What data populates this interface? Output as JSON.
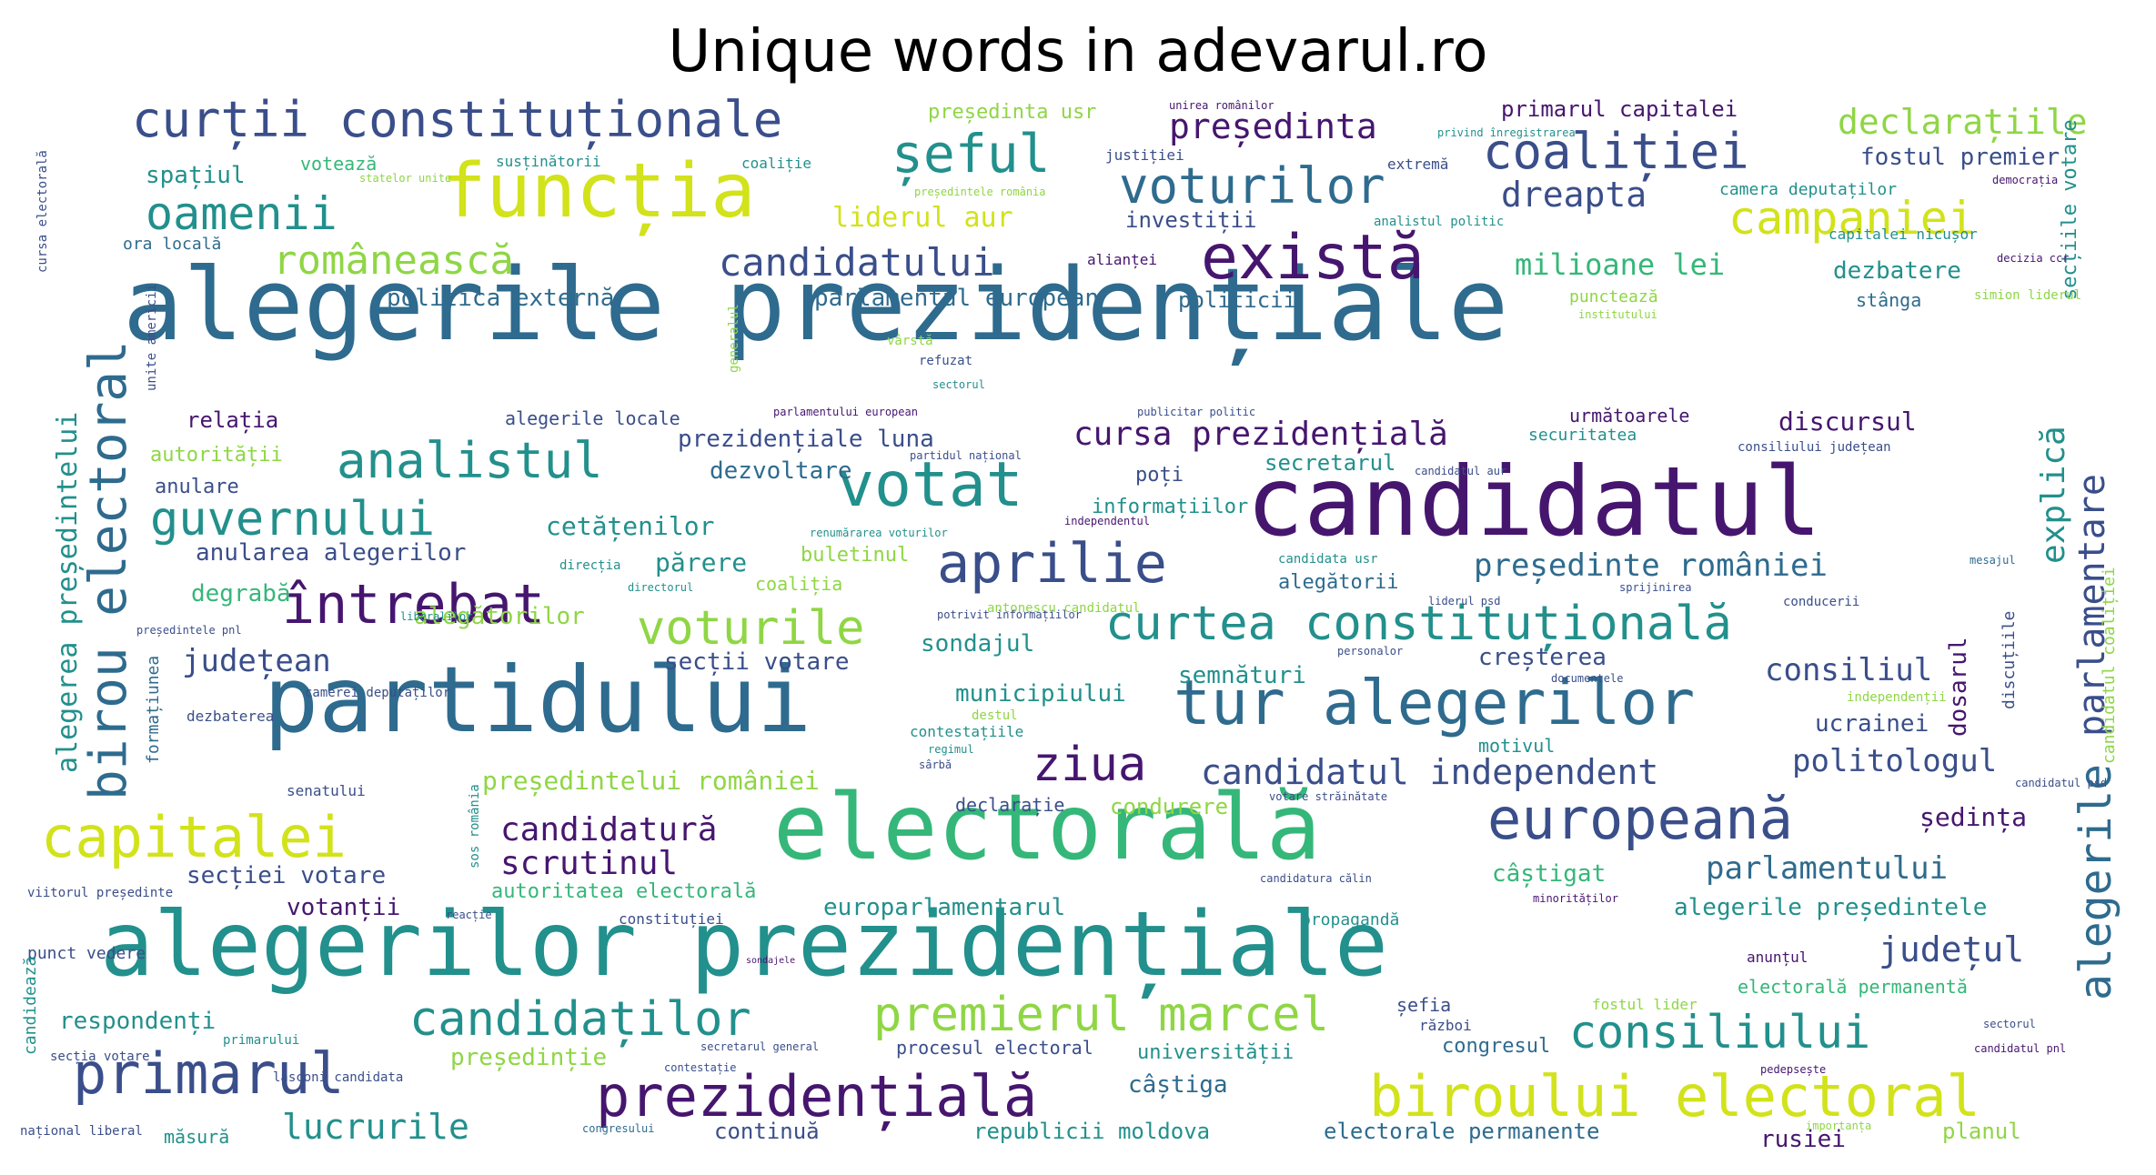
{
  "title": "Unique words in adevarul.ro",
  "palette": {
    "purple": "#46166f",
    "indigo": "#3a4e8a",
    "blue": "#2e6b8e",
    "teal": "#22908c",
    "green": "#35b779",
    "lime": "#8fd645",
    "yellow": "#d2e21b"
  },
  "words": [
    [
      "alegerile prezidențiale",
      "blue",
      110,
      135,
      280,
      0
    ],
    [
      "candidatul",
      "purple",
      105,
      1370,
      500,
      0
    ],
    [
      "partidului",
      "blue",
      100,
      290,
      720,
      0
    ],
    [
      "electorală",
      "green",
      100,
      850,
      860,
      0
    ],
    [
      "alegerilor prezidențiale",
      "teal",
      98,
      110,
      990,
      0
    ],
    [
      "funcția",
      "yellow",
      82,
      485,
      170,
      0
    ],
    [
      "există",
      "purple",
      68,
      1320,
      250,
      0
    ],
    [
      "tur alegerilor",
      "blue",
      68,
      1290,
      740,
      0
    ],
    [
      "votat",
      "teal",
      68,
      920,
      500,
      0
    ],
    [
      "birou electoral",
      "blue",
      56,
      92,
      880,
      -90
    ],
    [
      "curții constituționale",
      "indigo",
      54,
      145,
      105,
      0
    ],
    [
      "coaliției",
      "indigo",
      54,
      1630,
      140,
      0
    ],
    [
      "șeful",
      "teal",
      58,
      980,
      140,
      0
    ],
    [
      "voturilor",
      "blue",
      54,
      1230,
      178,
      0
    ],
    [
      "oamenii",
      "teal",
      50,
      160,
      210,
      0
    ],
    [
      "campaniei",
      "yellow",
      50,
      1900,
      215,
      0
    ],
    [
      "aprilie",
      "indigo",
      60,
      1030,
      590,
      0
    ],
    [
      "întrebat",
      "purple",
      60,
      310,
      635,
      0
    ],
    [
      "analistul",
      "teal",
      54,
      370,
      480,
      0
    ],
    [
      "guvernului",
      "teal",
      52,
      165,
      545,
      0
    ],
    [
      "curtea constituțională",
      "teal",
      52,
      1215,
      660,
      0
    ],
    [
      "voturile",
      "lime",
      52,
      700,
      665,
      0
    ],
    [
      "europeană",
      "indigo",
      62,
      1635,
      870,
      0
    ],
    [
      "capitalei",
      "yellow",
      62,
      45,
      890,
      0
    ],
    [
      "ziua",
      "purple",
      52,
      1135,
      815,
      0
    ],
    [
      "prezidențială",
      "purple",
      62,
      655,
      1175,
      0
    ],
    [
      "biroului electoral",
      "yellow",
      62,
      1505,
      1175,
      0
    ],
    [
      "primarul",
      "indigo",
      62,
      80,
      1150,
      0
    ],
    [
      "premierul marcel",
      "lime",
      52,
      960,
      1090,
      0
    ],
    [
      "candidaților",
      "teal",
      52,
      450,
      1095,
      0
    ],
    [
      "consiliului",
      "teal",
      50,
      1725,
      1110,
      0
    ],
    [
      "alegerile",
      "blue",
      48,
      2280,
      1100,
      -90
    ],
    [
      "românească",
      "lime",
      44,
      300,
      265,
      0
    ],
    [
      "candidatului",
      "indigo",
      42,
      790,
      268,
      0
    ],
    [
      "declarațiile",
      "lime",
      38,
      2020,
      115,
      0
    ],
    [
      "președinta",
      "purple",
      38,
      1285,
      120,
      0
    ],
    [
      "dreapta",
      "indigo",
      38,
      1650,
      195,
      0
    ],
    [
      "parlamentare",
      "indigo",
      40,
      2280,
      810,
      -90
    ],
    [
      "alegerea președintelui",
      "teal",
      30,
      60,
      850,
      -90
    ],
    [
      "cursa prezidențială",
      "purple",
      36,
      1180,
      460,
      0
    ],
    [
      "candidatul independent",
      "indigo",
      38,
      1320,
      830,
      0
    ],
    [
      "politologul",
      "indigo",
      34,
      1970,
      820,
      0
    ],
    [
      "candidatură",
      "purple",
      36,
      550,
      895,
      0
    ],
    [
      "scrutinul",
      "purple",
      36,
      550,
      932,
      0
    ],
    [
      "parlamentului",
      "blue",
      34,
      1875,
      938,
      0
    ],
    [
      "județul",
      "indigo",
      38,
      2065,
      1025,
      0
    ],
    [
      "lucrurile",
      "teal",
      38,
      310,
      1220,
      0
    ],
    [
      "președinte româniei",
      "blue",
      34,
      1620,
      605,
      0
    ],
    [
      "explică",
      "teal",
      36,
      2240,
      620,
      -90
    ],
    [
      "județean",
      "indigo",
      34,
      200,
      710,
      0
    ],
    [
      "consiliul",
      "indigo",
      34,
      1940,
      720,
      0
    ],
    [
      "liderul aur",
      "yellow",
      30,
      915,
      225,
      0
    ],
    [
      "milioane lei",
      "green",
      32,
      1665,
      275,
      0
    ],
    [
      "politica externă",
      "blue",
      26,
      425,
      315,
      0
    ],
    [
      "parlamentul european",
      "blue",
      26,
      895,
      315,
      0
    ],
    [
      "prezidențiale luna",
      "indigo",
      26,
      745,
      470,
      0
    ],
    [
      "dezvoltare",
      "blue",
      26,
      780,
      505,
      0
    ],
    [
      "cetățenilor",
      "teal",
      28,
      600,
      565,
      0
    ],
    [
      "părere",
      "teal",
      28,
      720,
      605,
      0
    ],
    [
      "anularea alegerilor",
      "indigo",
      26,
      215,
      595,
      0
    ],
    [
      "secții votare",
      "indigo",
      26,
      730,
      715,
      0
    ],
    [
      "sondajul",
      "teal",
      26,
      1012,
      695,
      0
    ],
    [
      "alegătorilor",
      "lime",
      26,
      455,
      665,
      0
    ],
    [
      "municipiului",
      "teal",
      26,
      1050,
      750,
      0
    ],
    [
      "semnături",
      "teal",
      26,
      1295,
      730,
      0
    ],
    [
      "creșterea",
      "indigo",
      26,
      1625,
      710,
      0
    ],
    [
      "discursul",
      "purple",
      28,
      1955,
      450,
      0
    ],
    [
      "dezbatere",
      "teal",
      26,
      2015,
      285,
      0
    ],
    [
      "fostul premier",
      "indigo",
      26,
      2045,
      160,
      0
    ],
    [
      "primarul capitalei",
      "purple",
      24,
      1650,
      108,
      0
    ],
    [
      "investiții",
      "indigo",
      24,
      1237,
      230,
      0
    ],
    [
      "politicii",
      "blue",
      24,
      1295,
      318,
      0
    ],
    [
      "ucrainei",
      "indigo",
      26,
      1995,
      783,
      0
    ],
    [
      "dosarul",
      "purple",
      26,
      2140,
      810,
      -90
    ],
    [
      "ședința",
      "purple",
      28,
      2110,
      885,
      0
    ],
    [
      "președintelui româniei",
      "lime",
      28,
      530,
      845,
      0
    ],
    [
      "secției votare",
      "indigo",
      26,
      205,
      950,
      0
    ],
    [
      "votanții",
      "purple",
      26,
      315,
      985,
      0
    ],
    [
      "autoritatea electorală",
      "green",
      22,
      540,
      970,
      0
    ],
    [
      "europarlamentarul",
      "teal",
      26,
      905,
      985,
      0
    ],
    [
      "câștigat",
      "green",
      26,
      1640,
      948,
      0
    ],
    [
      "alegerile președintele",
      "teal",
      26,
      1840,
      985,
      0
    ],
    [
      "respondenți",
      "teal",
      26,
      65,
      1110,
      0
    ],
    [
      "președinție",
      "lime",
      26,
      495,
      1150,
      0
    ],
    [
      "câștiga",
      "blue",
      26,
      1240,
      1180,
      0
    ],
    [
      "continuă",
      "indigo",
      24,
      785,
      1232,
      0
    ],
    [
      "republicii moldova",
      "teal",
      24,
      1070,
      1232,
      0
    ],
    [
      "electorale permanente",
      "blue",
      24,
      1455,
      1232,
      0
    ],
    [
      "rusiei",
      "purple",
      26,
      1935,
      1240,
      0
    ],
    [
      "planul",
      "lime",
      24,
      2135,
      1232,
      0
    ],
    [
      "universității",
      "teal",
      22,
      1250,
      1147,
      0
    ],
    [
      "congresul",
      "blue",
      22,
      1585,
      1140,
      0
    ],
    [
      "procesul electoral",
      "indigo",
      20,
      985,
      1142,
      0
    ],
    [
      "electorală permanentă",
      "green",
      20,
      1910,
      1075,
      0
    ],
    [
      "relația",
      "purple",
      24,
      205,
      450,
      0
    ],
    [
      "autorității",
      "lime",
      22,
      165,
      490,
      0
    ],
    [
      "anulare",
      "indigo",
      22,
      170,
      525,
      0
    ],
    [
      "degrabă",
      "green",
      26,
      210,
      640,
      0
    ],
    [
      "spațiul",
      "teal",
      26,
      160,
      180,
      0
    ],
    [
      "votează",
      "green",
      20,
      330,
      170,
      0
    ],
    [
      "ora locală",
      "blue",
      18,
      135,
      260,
      0
    ],
    [
      "alegerile locale",
      "indigo",
      20,
      555,
      450,
      0
    ],
    [
      "informațiilor",
      "teal",
      22,
      1200,
      547,
      0
    ],
    [
      "poți",
      "indigo",
      22,
      1248,
      512,
      0
    ],
    [
      "secretarul",
      "teal",
      24,
      1390,
      497,
      0
    ],
    [
      "alegătorii",
      "blue",
      22,
      1405,
      630,
      0
    ],
    [
      "buletinul",
      "lime",
      22,
      880,
      600,
      0
    ],
    [
      "coaliția",
      "lime",
      20,
      830,
      632,
      0
    ],
    [
      "condurere",
      "lime",
      24,
      1220,
      875,
      0
    ],
    [
      "declarație",
      "indigo",
      20,
      1050,
      875,
      0
    ],
    [
      "motivul",
      "teal",
      20,
      1625,
      810,
      0
    ],
    [
      "securitatea",
      "teal",
      18,
      1680,
      470,
      0
    ],
    [
      "următoarele",
      "purple",
      20,
      1725,
      447,
      0
    ],
    [
      "secțiile votare",
      "teal",
      22,
      2265,
      330,
      -90
    ],
    [
      "stânga",
      "blue",
      20,
      2040,
      320,
      0
    ],
    [
      "secretarul general",
      "indigo",
      12,
      770,
      1145,
      0
    ],
    [
      "contestațiile",
      "teal",
      16,
      1000,
      797,
      0
    ],
    [
      "senatului",
      "indigo",
      16,
      315,
      862,
      0
    ],
    [
      "dezbaterea",
      "indigo",
      16,
      205,
      780,
      0
    ],
    [
      "formațiunea",
      "blue",
      18,
      160,
      840,
      -90
    ],
    [
      "viitorul președinte",
      "indigo",
      14,
      30,
      975,
      0
    ],
    [
      "punct vedere",
      "indigo",
      18,
      30,
      1040,
      0
    ],
    [
      "candidează",
      "teal",
      18,
      25,
      1160,
      -90
    ],
    [
      "național liberal",
      "indigo",
      14,
      22,
      1237,
      0
    ],
    [
      "secția votare",
      "indigo",
      14,
      55,
      1155,
      0
    ],
    [
      "măsură",
      "teal",
      20,
      180,
      1240,
      0
    ],
    [
      "primarului",
      "teal",
      14,
      245,
      1137,
      0
    ],
    [
      "lasconi candidata",
      "indigo",
      14,
      300,
      1178,
      0
    ],
    [
      "congresului",
      "blue",
      12,
      640,
      1235,
      0
    ],
    [
      "contestație",
      "indigo",
      12,
      730,
      1168,
      0
    ],
    [
      "reacție",
      "indigo",
      12,
      490,
      1000,
      0
    ],
    [
      "constituției",
      "indigo",
      16,
      680,
      1003,
      0
    ],
    [
      "sondajele",
      "purple",
      10,
      820,
      1052,
      0
    ],
    [
      "propagandă",
      "teal",
      18,
      1430,
      1003,
      0
    ],
    [
      "minorităților",
      "purple",
      12,
      1685,
      982,
      0
    ],
    [
      "anunțul",
      "purple",
      16,
      1920,
      1045,
      0
    ],
    [
      "șefia",
      "indigo",
      20,
      1535,
      1095,
      0
    ],
    [
      "război",
      "indigo",
      16,
      1560,
      1120,
      0
    ],
    [
      "fostul lider",
      "lime",
      16,
      1750,
      1097,
      0
    ],
    [
      "pedepsește",
      "purple",
      12,
      1935,
      1170,
      0
    ],
    [
      "importanța",
      "lime",
      12,
      1985,
      1232,
      0
    ],
    [
      "candidatul pnl",
      "purple",
      12,
      2170,
      1147,
      0
    ],
    [
      "sectorul",
      "indigo",
      12,
      2180,
      1120,
      0
    ],
    [
      "candidatul psd",
      "indigo",
      12,
      2215,
      855,
      0
    ],
    [
      "independenții",
      "lime",
      14,
      2030,
      760,
      0
    ],
    [
      "discuțiile",
      "indigo",
      18,
      2200,
      780,
      -90
    ],
    [
      "candidatul coaliției",
      "lime",
      18,
      2310,
      840,
      -90
    ],
    [
      "documentele",
      "indigo",
      12,
      1705,
      740,
      0
    ],
    [
      "conducerii",
      "indigo",
      14,
      1960,
      655,
      0
    ],
    [
      "sprijinirea",
      "indigo",
      12,
      1780,
      640,
      0
    ],
    [
      "liderul psd",
      "indigo",
      12,
      1570,
      655,
      0
    ],
    [
      "personalor",
      "indigo",
      12,
      1470,
      710,
      0
    ],
    [
      "mesajul",
      "blue",
      12,
      2165,
      610,
      0
    ],
    [
      "antonescu candidatul",
      "lime",
      14,
      1085,
      662,
      0
    ],
    [
      "candidata usr",
      "teal",
      14,
      1405,
      608,
      0
    ],
    [
      "votare străinătate",
      "indigo",
      12,
      1395,
      870,
      0
    ],
    [
      "candidatura călin",
      "indigo",
      12,
      1385,
      960,
      0
    ],
    [
      "consiliului județean",
      "indigo",
      14,
      1910,
      485,
      0
    ],
    [
      "candidatul aur",
      "indigo",
      12,
      1555,
      512,
      0
    ],
    [
      "renumărarea voturilor",
      "teal",
      12,
      890,
      580,
      0
    ],
    [
      "direcția",
      "teal",
      14,
      615,
      615,
      0
    ],
    [
      "directorul",
      "teal",
      12,
      690,
      640,
      0
    ],
    [
      "potrivit informațiilor",
      "indigo",
      12,
      1030,
      670,
      0
    ],
    [
      "camerei deputaților",
      "indigo",
      14,
      335,
      755,
      0
    ],
    [
      "partidul național",
      "indigo",
      12,
      1000,
      495,
      0
    ],
    [
      "independentul",
      "purple",
      12,
      1170,
      567,
      0
    ],
    [
      "publicitar politic",
      "indigo",
      12,
      1250,
      447,
      0
    ],
    [
      "parlamentului european",
      "purple",
      12,
      850,
      447,
      0
    ],
    [
      "liberalilor",
      "teal",
      12,
      440,
      672,
      0
    ],
    [
      "președintele pnl",
      "indigo",
      12,
      150,
      687,
      0
    ],
    [
      "generalul",
      "lime",
      14,
      800,
      410,
      -90
    ],
    [
      "vârstă",
      "lime",
      14,
      975,
      368,
      0
    ],
    [
      "refuzat",
      "indigo",
      14,
      1010,
      390,
      0
    ],
    [
      "sectorul",
      "teal",
      12,
      1025,
      417,
      0
    ],
    [
      "institutului",
      "lime",
      12,
      1735,
      340,
      0
    ],
    [
      "punctează",
      "lime",
      18,
      1725,
      318,
      0
    ],
    [
      "simion liderul",
      "lime",
      14,
      2170,
      318,
      0
    ],
    [
      "decizia ccr",
      "purple",
      12,
      2195,
      278,
      0
    ],
    [
      "democrația",
      "purple",
      12,
      2190,
      192,
      0
    ],
    [
      "camera deputaților",
      "teal",
      18,
      1890,
      200,
      0
    ],
    [
      "capitalei nicușor",
      "teal",
      16,
      2010,
      250,
      0
    ],
    [
      "analistul politic",
      "teal",
      14,
      1510,
      237,
      0
    ],
    [
      "alianței",
      "purple",
      16,
      1195,
      278,
      0
    ],
    [
      "extremă",
      "indigo",
      16,
      1525,
      173,
      0
    ],
    [
      "justiției",
      "indigo",
      16,
      1215,
      163,
      0
    ],
    [
      "privind înregistrarea",
      "teal",
      12,
      1580,
      140,
      0
    ],
    [
      "unirea românilor",
      "purple",
      12,
      1285,
      110,
      0
    ],
    [
      "președinta usr",
      "lime",
      22,
      1020,
      113,
      0
    ],
    [
      "președintele românia",
      "lime",
      12,
      1005,
      205,
      0
    ],
    [
      "coaliție",
      "teal",
      16,
      815,
      172,
      0
    ],
    [
      "susținătorii",
      "teal",
      16,
      545,
      170,
      0
    ],
    [
      "statelor unite",
      "lime",
      12,
      395,
      190,
      0
    ],
    [
      "cursa electorală",
      "indigo",
      14,
      40,
      300,
      -90
    ],
    [
      "unite americii",
      "indigo",
      14,
      160,
      430,
      -90
    ],
    [
      "sos românia",
      "teal",
      14,
      515,
      955,
      -90
    ],
    [
      "sârbă",
      "indigo",
      12,
      1010,
      835,
      0
    ],
    [
      "regimul",
      "teal",
      12,
      1020,
      818,
      0
    ],
    [
      "destul",
      "lime",
      14,
      1068,
      780,
      0
    ]
  ]
}
